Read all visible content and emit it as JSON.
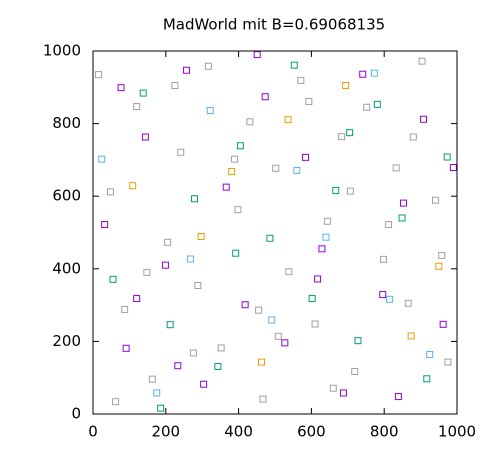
{
  "chart_data": {
    "type": "scatter",
    "title": "MadWorld mit B=0.69068135",
    "xlim": [
      0,
      1000
    ],
    "ylim": [
      0,
      1000
    ],
    "xticks": [
      0,
      200,
      400,
      600,
      800,
      1000
    ],
    "yticks": [
      0,
      200,
      400,
      600,
      800,
      1000
    ],
    "series": [
      {
        "color": "#a0a0a0",
        "x": [
          15,
          48,
          87,
          120,
          163,
          205,
          241,
          288,
          317,
          352,
          398,
          431,
          467,
          502,
          538,
          571,
          610,
          644,
          683,
          719,
          752,
          798,
          833,
          866,
          904,
          941,
          975,
          62,
          148,
          276,
          389,
          455,
          593,
          707,
          812,
          958,
          225,
          509,
          660,
          880
        ],
        "values": [
          935,
          612,
          288,
          847,
          96,
          473,
          721,
          354,
          958,
          182,
          563,
          805,
          41,
          677,
          392,
          919,
          248,
          531,
          764,
          117,
          845,
          426,
          678,
          305,
          972,
          589,
          143,
          34,
          390,
          168,
          702,
          286,
          861,
          614,
          522,
          437,
          905,
          214,
          71,
          763
        ]
      },
      {
        "color": "#9400d3",
        "x": [
          32,
          91,
          144,
          199,
          257,
          304,
          366,
          418,
          473,
          527,
          584,
          629,
          688,
          741,
          796,
          853,
          908,
          962,
          77,
          233,
          451,
          617,
          839,
          990,
          120
        ],
        "values": [
          522,
          181,
          763,
          410,
          947,
          82,
          625,
          301,
          874,
          196,
          707,
          455,
          58,
          936,
          329,
          581,
          812,
          247,
          899,
          133,
          990,
          372,
          48,
          679,
          318
        ]
      },
      {
        "color": "#009e73",
        "x": [
          55,
          138,
          212,
          279,
          343,
          405,
          486,
          553,
          602,
          667,
          728,
          781,
          849,
          917,
          973,
          186,
          392,
          705
        ],
        "values": [
          371,
          884,
          246,
          593,
          131,
          739,
          484,
          961,
          318,
          616,
          202,
          853,
          540,
          97,
          708,
          16,
          443,
          775
        ]
      },
      {
        "color": "#56b4e9",
        "x": [
          24,
          175,
          322,
          491,
          640,
          773,
          925,
          268,
          560,
          815
        ],
        "values": [
          702,
          58,
          836,
          259,
          487,
          939,
          164,
          427,
          671,
          316
        ]
      },
      {
        "color": "#e69f00",
        "x": [
          109,
          297,
          463,
          536,
          694,
          874,
          950,
          381
        ],
        "values": [
          629,
          489,
          143,
          811,
          905,
          215,
          407,
          668
        ]
      }
    ]
  }
}
